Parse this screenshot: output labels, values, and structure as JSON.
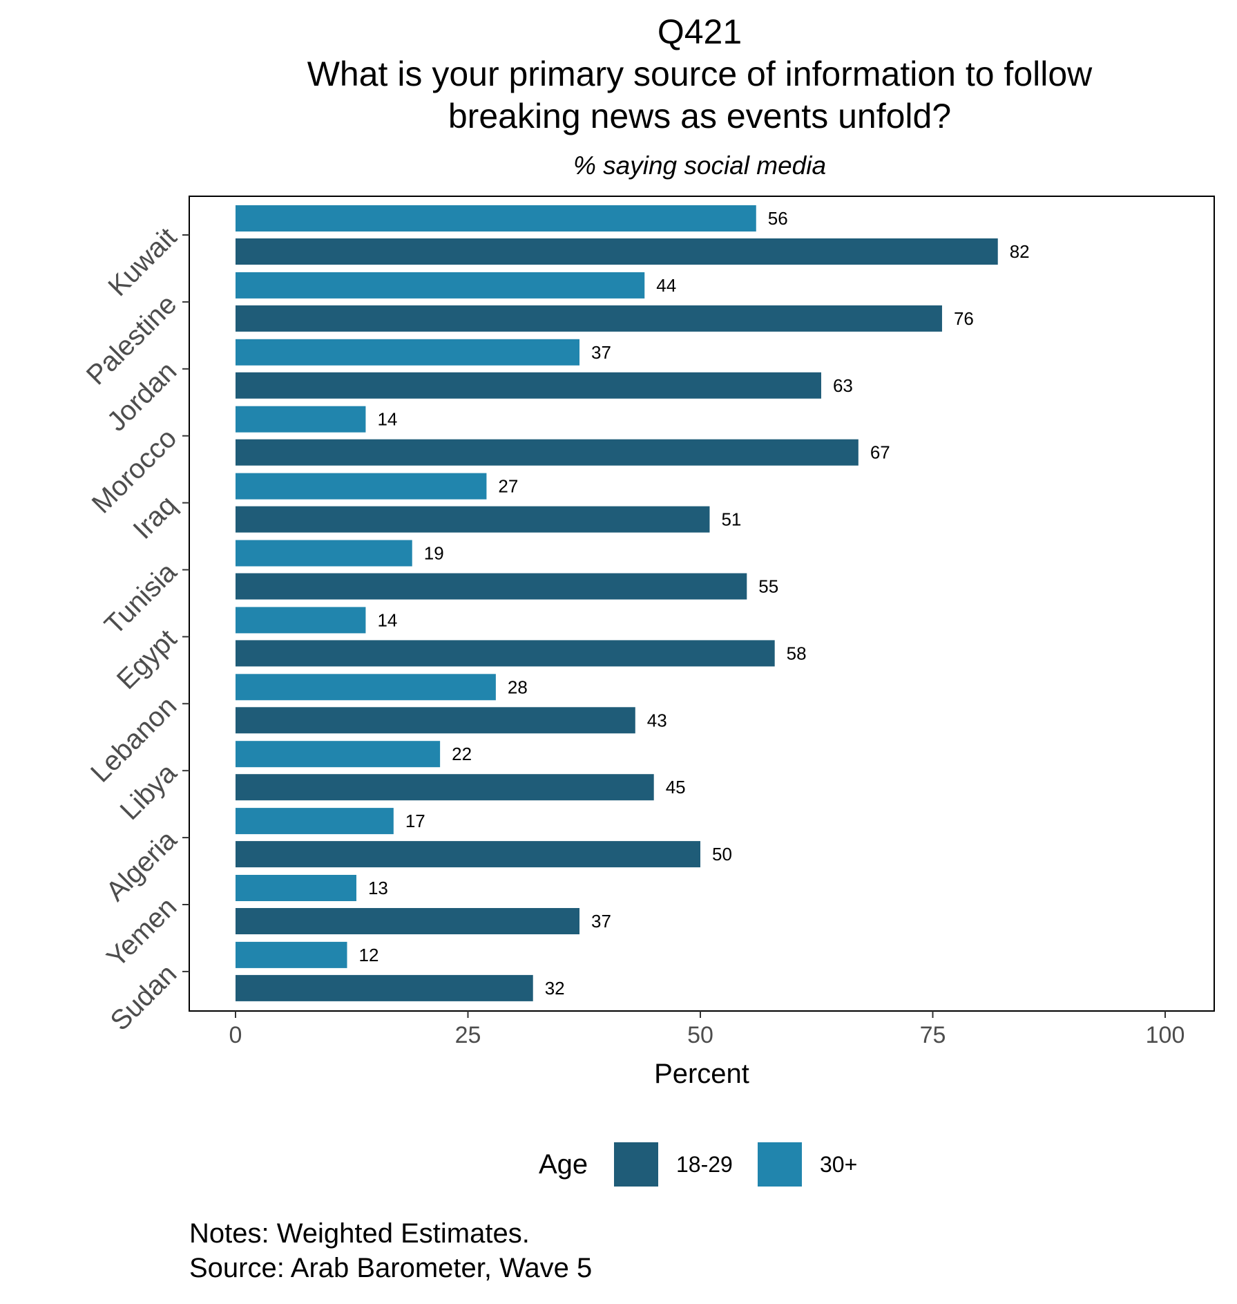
{
  "chart_data": {
    "type": "bar",
    "orientation": "horizontal",
    "title_lines": [
      "Q421",
      "What is your primary source of information to follow",
      "breaking news as events unfold?"
    ],
    "subtitle": "% saying social media",
    "xlabel": "Percent",
    "ylabel": "",
    "xlim": [
      0,
      100
    ],
    "x_ticks": [
      0,
      25,
      50,
      75,
      100
    ],
    "x_tick_labels": [
      "0",
      "25",
      "50",
      "75",
      "100"
    ],
    "categories": [
      "Kuwait",
      "Palestine",
      "Jordan",
      "Morocco",
      "Iraq",
      "Tunisia",
      "Egypt",
      "Lebanon",
      "Libya",
      "Algeria",
      "Yemen",
      "Sudan"
    ],
    "series": [
      {
        "name": "30+",
        "color": "#2185ad",
        "values": [
          56,
          44,
          37,
          14,
          27,
          19,
          14,
          28,
          22,
          17,
          13,
          12
        ]
      },
      {
        "name": "18-29",
        "color": "#1f5c78",
        "values": [
          82,
          76,
          63,
          67,
          51,
          55,
          58,
          43,
          45,
          50,
          37,
          32
        ]
      }
    ],
    "legend": {
      "title": "Age",
      "position": "bottom",
      "items": [
        {
          "label": "18-29",
          "color": "#1f5c78"
        },
        {
          "label": "30+",
          "color": "#2185ad"
        }
      ]
    },
    "grid": false,
    "data_labels": true
  },
  "notes": [
    "Notes: Weighted Estimates.",
    "Source: Arab Barometer, Wave 5"
  ]
}
